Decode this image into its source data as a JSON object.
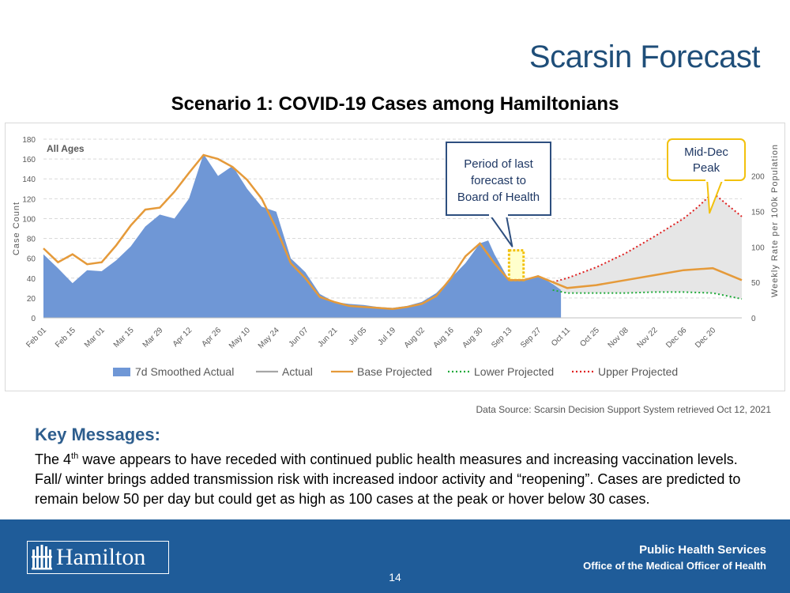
{
  "page": {
    "title": "Scarsin Forecast",
    "source": "Data Source: Scarsin Decision Support System retrieved Oct 12, 2021",
    "key_heading": "Key Messages:",
    "key_body": {
      "pre": "The 4",
      "sup": "th",
      "text": " wave appears to have receded with continued public health measures and increasing vaccination levels. Fall/ winter brings added transmission risk with increased indoor activity and “reopening”. Cases are predicted to remain below 50 per day but could get as high as 100 cases at the peak or hover below 30 cases."
    }
  },
  "footer": {
    "logo_text": "Hamilton",
    "page_number": "14",
    "dept_line1": "Public Health Services",
    "dept_line2": "Office of the Medical Officer of Health",
    "background": "#1f5c99"
  },
  "chart_data": {
    "type": "area",
    "title": "Scenario 1: COVID-19 Cases among Hamiltonians",
    "subtitle": "All Ages",
    "ylabel": "Case Count",
    "y2label": "Weekly Rate per 100k Population",
    "ylim": [
      0,
      180
    ],
    "yticks": [
      0,
      20,
      40,
      60,
      80,
      100,
      120,
      140,
      160,
      180
    ],
    "y2ticks": [
      0,
      50,
      100,
      150,
      200
    ],
    "x_tick_labels": [
      "Feb 01",
      "Feb 15",
      "Mar 01",
      "Mar 15",
      "Mar 29",
      "Apr 12",
      "Apr 26",
      "May 10",
      "May 24",
      "Jun 07",
      "Jun 21",
      "Jul 05",
      "Jul 19",
      "Aug 02",
      "Aug 16",
      "Aug 30",
      "Sep 13",
      "Sep 27",
      "Oct 11",
      "Oct 25",
      "Nov 08",
      "Nov 22",
      "Dec 06",
      "Dec 20"
    ],
    "grid": true,
    "legend_position": "bottom",
    "legend": [
      "7d Smoothed Actual",
      "Actual",
      "Base Projected",
      "Lower Projected",
      "Upper Projected"
    ],
    "colors": {
      "smoothed_actual": "#6f97d6",
      "actual": "#a6a6a6",
      "base": "#e59a3a",
      "lower": "#1faa3a",
      "upper": "#e02020",
      "band": "#e6e6e6",
      "callout_border_blue": "#2e4f7f",
      "callout_border_gold": "#f2c10d"
    },
    "smoothed_actual": {
      "x": [
        "2021-02-01",
        "2021-02-08",
        "2021-02-15",
        "2021-02-22",
        "2021-03-01",
        "2021-03-08",
        "2021-03-15",
        "2021-03-22",
        "2021-03-29",
        "2021-04-05",
        "2021-04-12",
        "2021-04-19",
        "2021-04-26",
        "2021-05-03",
        "2021-05-10",
        "2021-05-17",
        "2021-05-24",
        "2021-05-31",
        "2021-06-07",
        "2021-06-14",
        "2021-06-21",
        "2021-06-28",
        "2021-07-05",
        "2021-07-12",
        "2021-07-19",
        "2021-07-26",
        "2021-08-02",
        "2021-08-09",
        "2021-08-16",
        "2021-08-23",
        "2021-08-30",
        "2021-09-03",
        "2021-09-06",
        "2021-09-13",
        "2021-09-20",
        "2021-09-27",
        "2021-10-04",
        "2021-10-08"
      ],
      "values": [
        64,
        50,
        35,
        48,
        47,
        58,
        72,
        92,
        104,
        100,
        120,
        165,
        143,
        153,
        130,
        112,
        107,
        60,
        46,
        24,
        16,
        14,
        13,
        11,
        10,
        12,
        16,
        25,
        40,
        55,
        75,
        78,
        64,
        38,
        38,
        43,
        34,
        28
      ]
    },
    "base_projected": {
      "x": [
        "2021-02-01",
        "2021-02-08",
        "2021-02-15",
        "2021-02-22",
        "2021-03-01",
        "2021-03-08",
        "2021-03-15",
        "2021-03-22",
        "2021-03-29",
        "2021-04-05",
        "2021-04-12",
        "2021-04-19",
        "2021-04-26",
        "2021-05-03",
        "2021-05-10",
        "2021-05-17",
        "2021-05-24",
        "2021-05-31",
        "2021-06-07",
        "2021-06-14",
        "2021-06-21",
        "2021-06-28",
        "2021-07-05",
        "2021-07-12",
        "2021-07-19",
        "2021-07-26",
        "2021-08-02",
        "2021-08-09",
        "2021-08-16",
        "2021-08-23",
        "2021-08-30",
        "2021-09-06",
        "2021-09-13",
        "2021-09-20",
        "2021-09-27",
        "2021-10-04",
        "2021-10-11",
        "2021-10-25",
        "2021-11-08",
        "2021-11-22",
        "2021-12-06",
        "2021-12-20",
        "2022-01-03"
      ],
      "values": [
        70,
        56,
        64,
        54,
        56,
        73,
        93,
        109,
        111,
        127,
        146,
        164,
        160,
        152,
        139,
        120,
        90,
        55,
        40,
        21,
        16,
        12,
        11,
        10,
        9,
        11,
        14,
        22,
        40,
        62,
        75,
        55,
        38,
        38,
        42,
        36,
        30,
        33,
        38,
        43,
        48,
        50,
        38
      ]
    },
    "upper_projected": {
      "x": [
        "2021-10-04",
        "2021-10-11",
        "2021-10-25",
        "2021-11-08",
        "2021-11-22",
        "2021-12-06",
        "2021-12-13",
        "2021-12-20",
        "2022-01-03"
      ],
      "values": [
        36,
        40,
        51,
        65,
        82,
        100,
        112,
        126,
        102
      ]
    },
    "lower_projected": {
      "x": [
        "2021-10-04",
        "2021-10-11",
        "2021-10-25",
        "2021-11-08",
        "2021-11-22",
        "2021-12-06",
        "2021-12-20",
        "2022-01-03"
      ],
      "values": [
        28,
        25,
        25,
        25,
        26,
        26,
        25,
        19
      ]
    },
    "highlight_period": {
      "x": [
        "2021-09-13",
        "2021-09-20"
      ],
      "y": [
        38,
        68
      ]
    },
    "annotations": [
      {
        "label": "Period of last forecast to Board of Health",
        "target": "2021-09-13"
      },
      {
        "label": "Mid-Dec Peak",
        "target": "2021-12-20"
      }
    ]
  }
}
